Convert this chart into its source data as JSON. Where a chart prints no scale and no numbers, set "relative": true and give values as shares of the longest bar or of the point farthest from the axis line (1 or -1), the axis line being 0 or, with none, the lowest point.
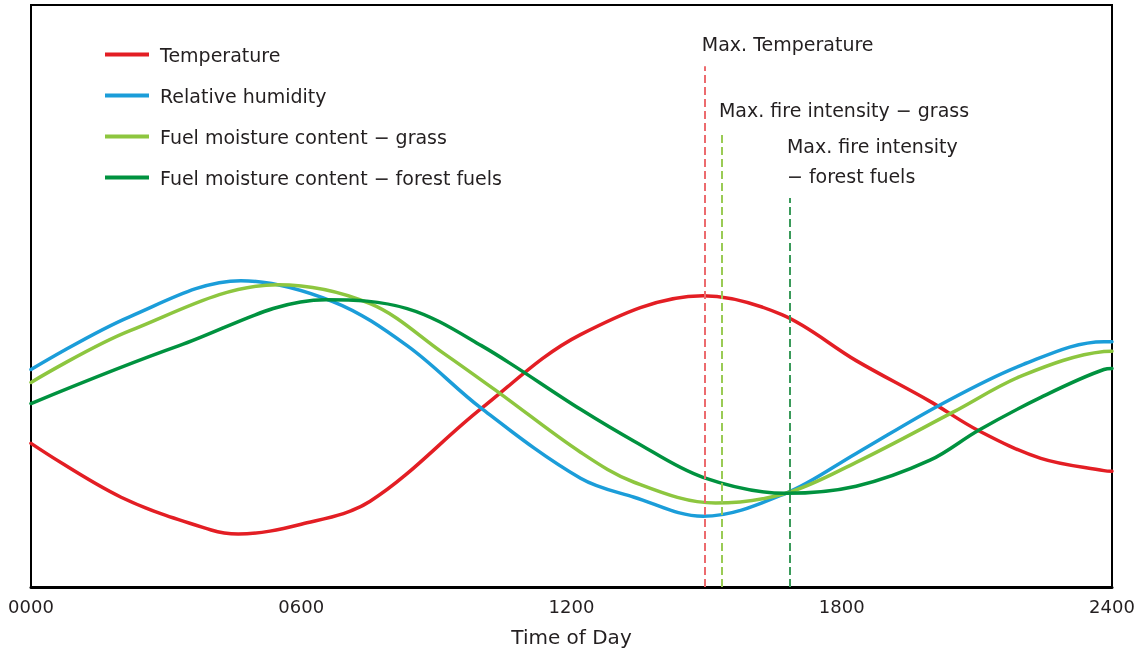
{
  "chart_data": {
    "type": "line",
    "xlabel": "Time of Day",
    "relative": true,
    "legend": "top left",
    "grid": false,
    "marker": "none",
    "line_style": "solid",
    "xlim": [
      0,
      2400
    ],
    "xticks": [
      {
        "value": 0,
        "label": "0000"
      },
      {
        "value": 600,
        "label": "0600"
      },
      {
        "value": 1200,
        "label": "1200"
      },
      {
        "value": 1800,
        "label": "1800"
      },
      {
        "value": 2400,
        "label": "2400"
      }
    ],
    "series": [
      {
        "name": "Temperature",
        "color": "#e31e24",
        "x": [
          0,
          200,
          400,
          460,
          600,
          753,
          1000,
          1220,
          1492,
          1667,
          1832,
          1996,
          2103,
          2242,
          2382,
          2400
        ],
        "values": [
          0.469,
          0.293,
          0.186,
          0.173,
          0.205,
          0.28,
          0.583,
          0.824,
          0.951,
          0.889,
          0.739,
          0.606,
          0.511,
          0.42,
          0.38,
          0.378
        ]
      },
      {
        "name": "Relative humidity",
        "color": "#1b9dd9",
        "x": [
          0,
          220,
          466,
          670,
          835,
          1000,
          1220,
          1339,
          1492,
          1676,
          1832,
          2020,
          2202,
          2382,
          2400
        ],
        "values": [
          0.71,
          0.883,
          1.0,
          0.932,
          0.788,
          0.583,
          0.355,
          0.293,
          0.231,
          0.306,
          0.436,
          0.596,
          0.726,
          0.801,
          0.801
        ]
      },
      {
        "name": "Fuel moisture content − grass",
        "color": "#8dc63f",
        "x": [
          0,
          220,
          548,
          753,
          917,
          1041,
          1220,
          1339,
          1520,
          1676,
          1832,
          2046,
          2202,
          2382,
          2400
        ],
        "values": [
          0.668,
          0.837,
          0.987,
          0.925,
          0.762,
          0.632,
          0.44,
          0.342,
          0.274,
          0.306,
          0.407,
          0.57,
          0.691,
          0.769,
          0.77
        ]
      },
      {
        "name": "Fuel moisture content − forest fuels",
        "color": "#00923f",
        "x": [
          0,
          329,
          655,
          835,
          1000,
          1220,
          1339,
          1492,
          1676,
          1832,
          1996,
          2103,
          2242,
          2382,
          2400
        ],
        "values": [
          0.599,
          0.788,
          0.938,
          0.909,
          0.788,
          0.58,
          0.476,
          0.358,
          0.306,
          0.329,
          0.414,
          0.511,
          0.619,
          0.71,
          0.713
        ]
      }
    ],
    "ref_lines": [
      {
        "axis": "x",
        "value": 1496,
        "label": "Max. Temperature",
        "color": "#ec6b6e",
        "line_style": "dashed"
      },
      {
        "axis": "x",
        "value": 1534,
        "label": "Max. fire intensity − grass",
        "color": "#9acb55",
        "line_style": "dashed"
      },
      {
        "axis": "x",
        "value": 1685,
        "label": "Max. fire intensity\n− forest fuels",
        "color": "#3a9a5a",
        "line_style": "dashed"
      }
    ]
  }
}
